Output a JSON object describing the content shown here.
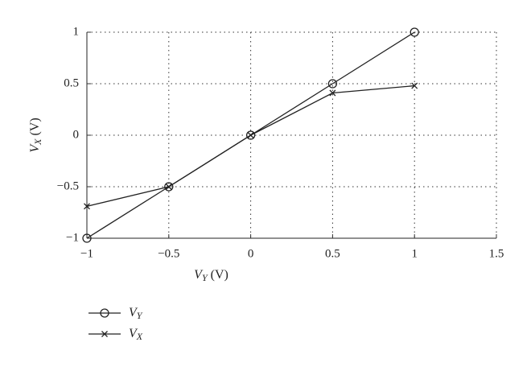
{
  "chart_data": {
    "type": "line",
    "xlabel": {
      "text": "V",
      "subscript": "Y",
      "unit": " (V)"
    },
    "ylabel": {
      "text": "V",
      "subscript": "X",
      "unit": " (V)"
    },
    "xlim": [
      -1,
      1.5
    ],
    "xticks": [
      {
        "value": -1,
        "label": "−1"
      },
      {
        "value": -0.5,
        "label": "−0.5"
      },
      0,
      0.5,
      1,
      1.5
    ],
    "ylim": [
      -1,
      1
    ],
    "yticks": [
      {
        "value": -1,
        "label": "−1"
      },
      {
        "value": -0.5,
        "label": "−0.5"
      },
      0,
      0.5,
      1
    ],
    "grid": true,
    "legend": "below",
    "series": [
      {
        "name": "V",
        "subscript": "Y",
        "color": "#222222",
        "marker": "circle",
        "x": [
          -1,
          -0.5,
          0,
          0.5,
          1
        ],
        "values": [
          -1,
          -0.5,
          0,
          0.5,
          1
        ]
      },
      {
        "name": "V",
        "subscript": "X",
        "color": "#222222",
        "marker": "x",
        "x": [
          -1,
          -0.5,
          0,
          0.5,
          1
        ],
        "values": [
          -0.69,
          -0.5,
          0,
          0.41,
          0.48
        ]
      }
    ]
  }
}
